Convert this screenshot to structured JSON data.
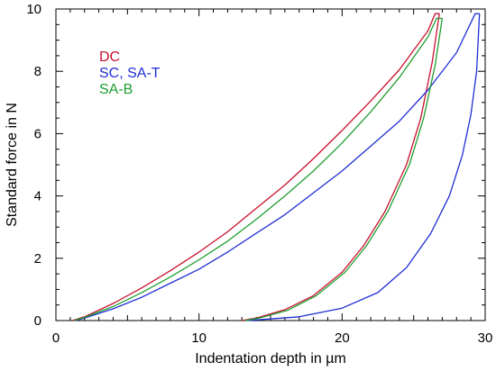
{
  "chart_data": {
    "type": "line",
    "title": "",
    "xlabel": "Indentation depth in µm",
    "ylabel": "Standard force in N",
    "xlim": [
      0,
      30
    ],
    "ylim": [
      0,
      10
    ],
    "xticks": [
      0,
      10,
      20,
      30
    ],
    "yticks": [
      0,
      2,
      4,
      6,
      8,
      10
    ],
    "grid": false,
    "legend": "top-left",
    "series": [
      {
        "name": "DC",
        "color": "#c8102e",
        "loading": [
          [
            1.2,
            0.01
          ],
          [
            2,
            0.12
          ],
          [
            4,
            0.55
          ],
          [
            6,
            1.05
          ],
          [
            8,
            1.6
          ],
          [
            10,
            2.2
          ],
          [
            12,
            2.85
          ],
          [
            14,
            3.6
          ],
          [
            16,
            4.35
          ],
          [
            18,
            5.2
          ],
          [
            20,
            6.1
          ],
          [
            22,
            7.05
          ],
          [
            24,
            8.05
          ],
          [
            26,
            9.3
          ],
          [
            26.5,
            9.85
          ],
          [
            26.8,
            9.85
          ]
        ],
        "unloading": [
          [
            26.8,
            9.85
          ],
          [
            26.3,
            8.3
          ],
          [
            25.5,
            6.5
          ],
          [
            24.5,
            5.0
          ],
          [
            23,
            3.5
          ],
          [
            21.5,
            2.4
          ],
          [
            20,
            1.55
          ],
          [
            18,
            0.8
          ],
          [
            16,
            0.35
          ],
          [
            14,
            0.08
          ],
          [
            13,
            0.0
          ]
        ]
      },
      {
        "name": "SC, SA-T",
        "color": "#1f2ed4",
        "loading": [
          [
            1.4,
            0.01
          ],
          [
            2,
            0.08
          ],
          [
            4,
            0.38
          ],
          [
            6,
            0.75
          ],
          [
            8,
            1.2
          ],
          [
            10,
            1.65
          ],
          [
            12,
            2.2
          ],
          [
            14,
            2.8
          ],
          [
            16,
            3.4
          ],
          [
            18,
            4.1
          ],
          [
            20,
            4.8
          ],
          [
            22,
            5.6
          ],
          [
            24,
            6.4
          ],
          [
            26,
            7.4
          ],
          [
            28,
            8.6
          ],
          [
            29.3,
            9.85
          ],
          [
            29.6,
            9.85
          ]
        ],
        "unloading": [
          [
            29.6,
            9.85
          ],
          [
            29.4,
            8.0
          ],
          [
            29,
            6.6
          ],
          [
            28.4,
            5.3
          ],
          [
            27.5,
            4.0
          ],
          [
            26.2,
            2.8
          ],
          [
            24.5,
            1.7
          ],
          [
            22.5,
            0.9
          ],
          [
            20,
            0.4
          ],
          [
            17,
            0.12
          ],
          [
            14,
            0.02
          ],
          [
            13.2,
            0.0
          ]
        ]
      },
      {
        "name": "SA-B",
        "color": "#1e9e2e",
        "loading": [
          [
            1.3,
            0.01
          ],
          [
            2,
            0.1
          ],
          [
            4,
            0.45
          ],
          [
            6,
            0.9
          ],
          [
            8,
            1.4
          ],
          [
            10,
            1.95
          ],
          [
            12,
            2.55
          ],
          [
            14,
            3.25
          ],
          [
            16,
            4.0
          ],
          [
            18,
            4.8
          ],
          [
            20,
            5.7
          ],
          [
            22,
            6.7
          ],
          [
            24,
            7.8
          ],
          [
            26,
            9.1
          ],
          [
            26.6,
            9.7
          ],
          [
            27.0,
            9.7
          ]
        ],
        "unloading": [
          [
            27.0,
            9.7
          ],
          [
            26.5,
            8.2
          ],
          [
            25.7,
            6.5
          ],
          [
            24.7,
            5.0
          ],
          [
            23.2,
            3.5
          ],
          [
            21.7,
            2.4
          ],
          [
            20.2,
            1.55
          ],
          [
            18.2,
            0.8
          ],
          [
            16.2,
            0.33
          ],
          [
            14.2,
            0.08
          ],
          [
            13.2,
            0.0
          ]
        ]
      }
    ]
  }
}
